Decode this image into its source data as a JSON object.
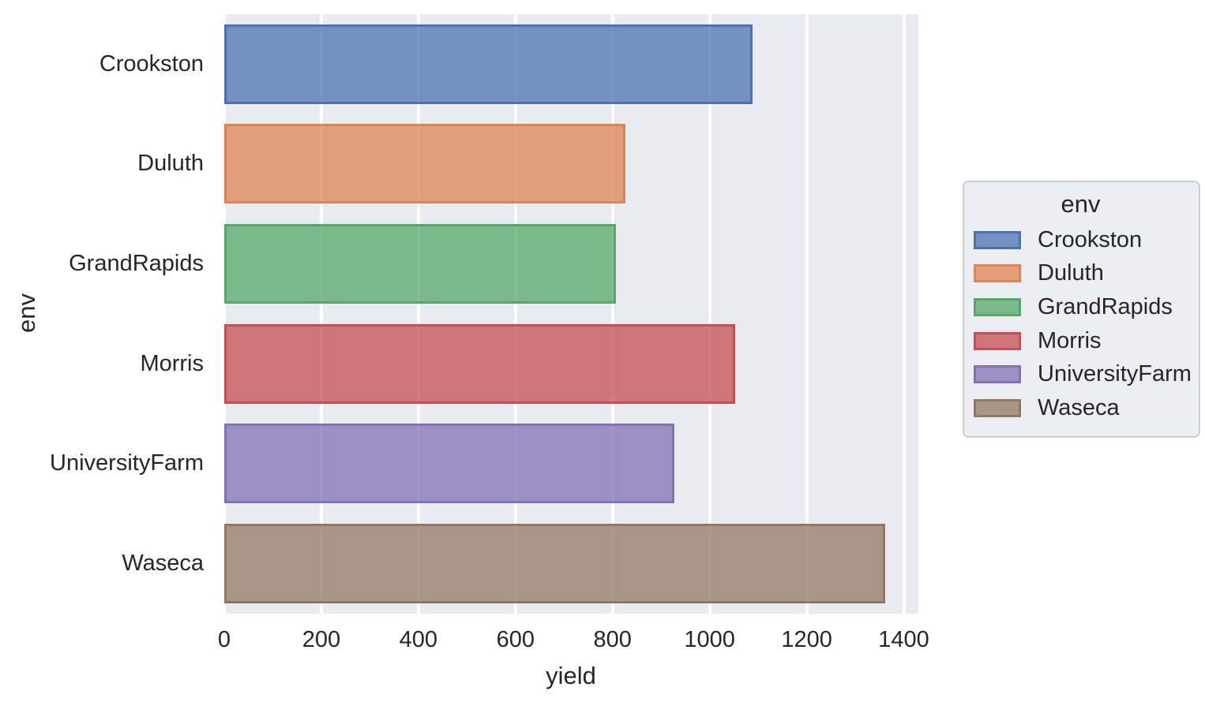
{
  "chart_data": {
    "type": "bar",
    "orientation": "horizontal",
    "title": "",
    "xlabel": "yield",
    "ylabel": "env",
    "categories": [
      "Crookston",
      "Duluth",
      "GrandRapids",
      "Morris",
      "UniversityFarm",
      "Waseca"
    ],
    "values": [
      1088,
      827,
      807,
      1052,
      928,
      1362
    ],
    "xlim": [
      0,
      1430
    ],
    "xticks": [
      0,
      200,
      400,
      600,
      800,
      1000,
      1200,
      1400
    ],
    "grid": true,
    "legend": {
      "title": "env",
      "position": "right",
      "entries": [
        "Crookston",
        "Duluth",
        "GrandRapids",
        "Morris",
        "UniversityFarm",
        "Waseca"
      ]
    },
    "colors": {
      "edge": [
        "#4c72b0",
        "#dd8452",
        "#55a868",
        "#c44e52",
        "#8172b3",
        "#937860"
      ],
      "fill_alpha": 0.75,
      "plot_background": "#eaeaf2",
      "grid_color": "#ffffff",
      "text": "#262626",
      "legend_border": "#cccccc"
    }
  }
}
